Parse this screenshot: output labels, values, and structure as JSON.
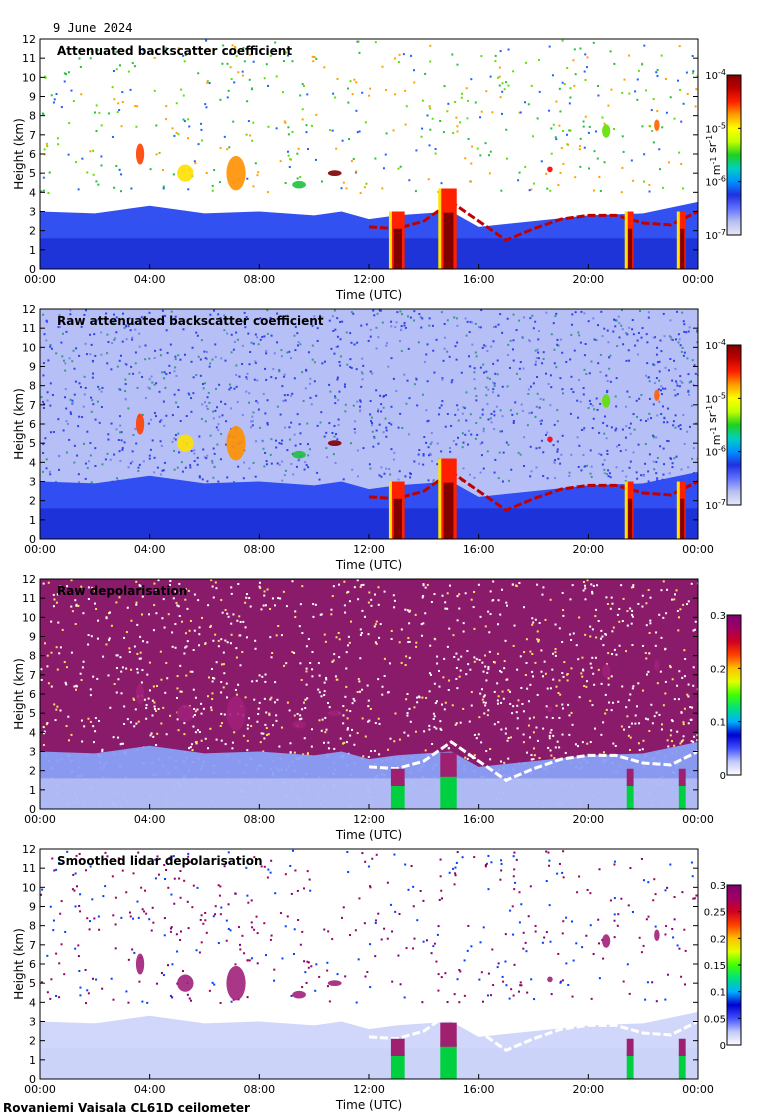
{
  "header": {
    "date": "9 June 2024"
  },
  "footer": {
    "site": "Rovaniemi Vaisala CL61D ceilometer"
  },
  "colors": {
    "background": "#ffffff",
    "clear_air": "#ffffff",
    "low_signal": "#c8c8f0",
    "mid_signal": "#2840e8",
    "strong_signal": "#ff0000",
    "depol_high": "#800060"
  },
  "chart_data": [
    {
      "type": "heatmap",
      "title": "Attenuated backscatter coefficient",
      "xlabel": "Time (UTC)",
      "ylabel": "Height (km)",
      "x_ticks": [
        "00:00",
        "04:00",
        "08:00",
        "12:00",
        "16:00",
        "20:00",
        "00:00"
      ],
      "y_ticks": [
        "0",
        "1",
        "2",
        "3",
        "4",
        "5",
        "6",
        "7",
        "8",
        "9",
        "10",
        "11",
        "12"
      ],
      "xlim": [
        0,
        24
      ],
      "ylim": [
        0,
        12
      ],
      "grid": false,
      "colorbar": {
        "scale": "log",
        "ticks": [
          "10-7",
          "10-6",
          "10-5",
          "10-4"
        ],
        "unit": "m-1 sr-1"
      }
    },
    {
      "type": "heatmap",
      "title": "Raw attenuated backscatter coefficient",
      "xlabel": "Time (UTC)",
      "ylabel": "Height (km)",
      "x_ticks": [
        "00:00",
        "04:00",
        "08:00",
        "12:00",
        "16:00",
        "20:00",
        "00:00"
      ],
      "y_ticks": [
        "0",
        "1",
        "2",
        "3",
        "4",
        "5",
        "6",
        "7",
        "8",
        "9",
        "10",
        "11",
        "12"
      ],
      "xlim": [
        0,
        24
      ],
      "ylim": [
        0,
        12
      ],
      "grid": false,
      "colorbar": {
        "scale": "log",
        "ticks": [
          "10-7",
          "10-6",
          "10-5",
          "10-4"
        ],
        "unit": "m-1 sr-1"
      }
    },
    {
      "type": "heatmap",
      "title": "Raw depolarisation",
      "xlabel": "Time (UTC)",
      "ylabel": "Height (km)",
      "x_ticks": [
        "00:00",
        "04:00",
        "08:00",
        "12:00",
        "16:00",
        "20:00",
        "00:00"
      ],
      "y_ticks": [
        "0",
        "1",
        "2",
        "3",
        "4",
        "5",
        "6",
        "7",
        "8",
        "9",
        "10",
        "11",
        "12"
      ],
      "xlim": [
        0,
        24
      ],
      "ylim": [
        0,
        12
      ],
      "grid": false,
      "colorbar": {
        "scale": "linear",
        "ticks": [
          "0",
          "0.1",
          "0.2",
          "0.3"
        ],
        "unit": ""
      }
    },
    {
      "type": "heatmap",
      "title": "Smoothed lidar depolarisation",
      "xlabel": "Time (UTC)",
      "ylabel": "Height (km)",
      "x_ticks": [
        "00:00",
        "04:00",
        "08:00",
        "12:00",
        "16:00",
        "20:00",
        "00:00"
      ],
      "y_ticks": [
        "0",
        "1",
        "2",
        "3",
        "4",
        "5",
        "6",
        "7",
        "8",
        "9",
        "10",
        "11",
        "12"
      ],
      "xlim": [
        0,
        24
      ],
      "ylim": [
        0,
        12
      ],
      "grid": false,
      "colorbar": {
        "scale": "linear",
        "ticks": [
          "0",
          "0.05",
          "0.1",
          "0.15",
          "0.2",
          "0.25",
          "0.3"
        ],
        "unit": ""
      }
    }
  ]
}
